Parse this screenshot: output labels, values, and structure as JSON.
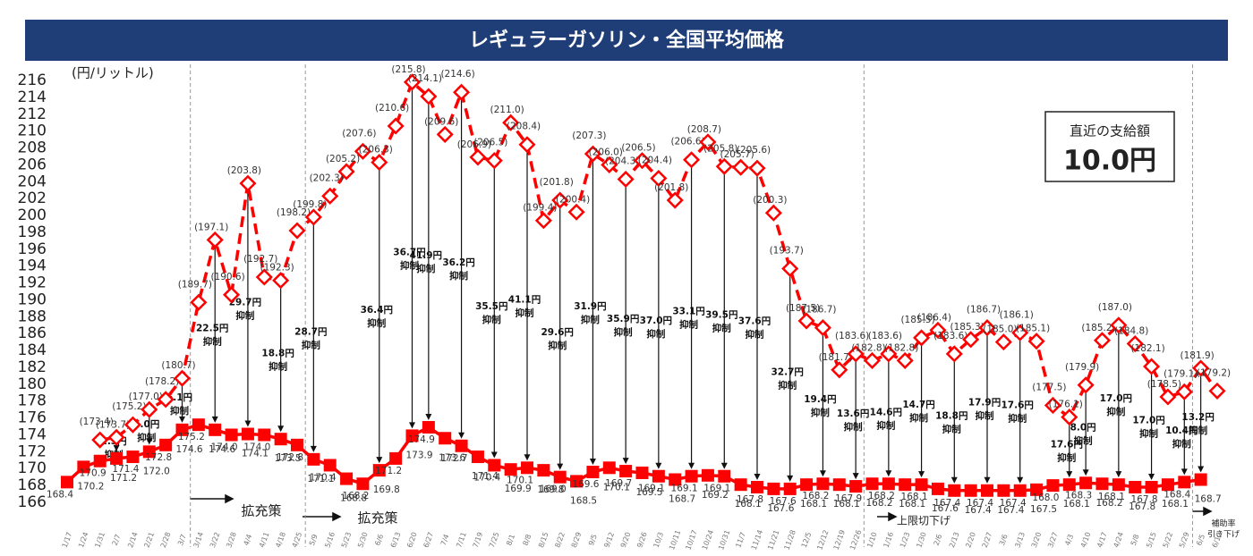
{
  "chart_data": {
    "type": "line",
    "title": "レギュラーガソリン・全国平均価格",
    "y_axis_label": "(円/リットル)",
    "categories": [
      "1/17",
      "1/24",
      "1/31",
      "2/7",
      "2/14",
      "2/21",
      "2/28",
      "3/7",
      "3/14",
      "3/22",
      "3/28",
      "4/4",
      "4/11",
      "4/18",
      "4/25",
      "5/9",
      "5/16",
      "5/23",
      "5/30",
      "6/6",
      "6/13",
      "6/20",
      "6/27",
      "7/4",
      "7/11",
      "7/19",
      "7/25",
      "8/1",
      "8/8",
      "8/15",
      "8/22",
      "8/29",
      "9/5",
      "9/12",
      "9/20",
      "9/26",
      "10/3",
      "10/11",
      "10/17",
      "10/24",
      "10/31",
      "11/7",
      "11/14",
      "11/21",
      "11/28",
      "12/5",
      "12/12",
      "12/19",
      "12/26",
      "1/10",
      "1/16",
      "1/23",
      "1/30",
      "2/6",
      "2/13",
      "2/20",
      "2/27",
      "3/6",
      "3/13",
      "3/20",
      "3/27",
      "4/3",
      "4/10",
      "4/17",
      "4/24",
      "5/8",
      "5/15",
      "5/22",
      "5/29",
      "6/5",
      "6/12"
    ],
    "series": [
      {
        "color": "#ff0000",
        "style": "solid",
        "marker": "square",
        "values": [
          168.4,
          170.2,
          170.9,
          171.2,
          171.4,
          172.0,
          172.8,
          174.6,
          175.2,
          174.6,
          174.0,
          174.1,
          174.0,
          173.5,
          172.8,
          171.1,
          170.4,
          168.8,
          168.2,
          169.8,
          171.2,
          173.9,
          174.9,
          173.6,
          172.7,
          171.4,
          170.4,
          169.9,
          170.1,
          169.8,
          169.0,
          168.5,
          169.6,
          170.1,
          169.7,
          169.5,
          169.1,
          168.7,
          169.1,
          169.2,
          169.1,
          168.1,
          167.8,
          167.6,
          167.6,
          168.1,
          168.2,
          168.1,
          167.9,
          168.2,
          168.2,
          168.1,
          168.1,
          167.6,
          167.4,
          167.4,
          167.4,
          167.4,
          167.4,
          167.5,
          168.0,
          168.1,
          168.3,
          168.2,
          168.1,
          167.8,
          167.8,
          168.1,
          168.4,
          168.7,
          null
        ],
        "value_labels": [
          "168.4",
          "170.2",
          "170.9",
          "171.2",
          "171.4",
          "172.0",
          "172.8",
          "174.6",
          "175.2",
          "174.6",
          "174.0",
          "174.1",
          "174.0",
          "173.5",
          "172.8",
          "171.1",
          "170.4",
          "168.8",
          "168.2",
          "169.8",
          "171.2",
          "173.9",
          "174.9",
          "173.6",
          "172.7",
          "171.4",
          "170.4",
          "169.9",
          "170.1",
          "169.8",
          "169.0",
          "168.5",
          "169.6",
          "170.1",
          "169.7",
          "169.5",
          "169.1",
          "168.7",
          "169.1",
          "169.2",
          "169.1",
          "168.1",
          "167.8",
          "167.6",
          "167.6",
          "168.1",
          "168.2",
          "168.1",
          "167.9",
          "168.2",
          "168.2",
          "168.1",
          "168.1",
          "167.6",
          "167.4",
          "167.4",
          "167.4",
          "167.4",
          "167.4",
          "167.5",
          "168.0",
          "168.1",
          "168.3",
          "168.2",
          "168.1",
          "167.8",
          "167.8",
          "168.1",
          "168.4",
          "168.7",
          null
        ]
      },
      {
        "color": "#ff0000",
        "style": "dashed",
        "marker": "diamond",
        "values": [
          null,
          null,
          173.4,
          173.7,
          175.2,
          177.0,
          178.2,
          180.7,
          189.7,
          197.1,
          190.6,
          203.8,
          192.7,
          192.3,
          198.2,
          199.8,
          202.3,
          205.2,
          207.6,
          206.3,
          210.6,
          215.8,
          214.1,
          209.6,
          214.6,
          206.9,
          206.5,
          211.0,
          208.4,
          199.4,
          201.8,
          200.4,
          207.3,
          206.0,
          204.3,
          206.5,
          204.4,
          201.8,
          206.6,
          208.7,
          205.8,
          205.7,
          205.6,
          200.3,
          193.7,
          187.5,
          186.7,
          181.7,
          183.6,
          182.8,
          183.6,
          182.8,
          185.5,
          186.4,
          183.6,
          185.3,
          186.7,
          185.0,
          186.1,
          185.1,
          177.5,
          176.1,
          179.9,
          185.2,
          187.0,
          184.8,
          182.1,
          178.5,
          179.1,
          181.9,
          179.2
        ],
        "value_labels": [
          null,
          null,
          "(173.4)",
          "(173.7)",
          "(175.2)",
          "(177.0)",
          "(178.2)",
          "(180.7)",
          "(189.7)",
          "(197.1)",
          "(190.6)",
          "(203.8)",
          "(192.7)",
          "(192.3)",
          "(198.2)",
          "(199.8)",
          "(202.3)",
          "(205.2)",
          "(207.6)",
          "(206.3)",
          "(210.6)",
          "(215.8)",
          "(214.1)",
          "(209.6)",
          "(214.6)",
          "(206.9)",
          "(206.5)",
          "(211.0)",
          "(208.4)",
          "(199.4)",
          "(201.8)",
          "(200.4)",
          "(207.3)",
          "(206.0)",
          "(204.3)",
          "(206.5)",
          "(204.4)",
          "(201.8)",
          "(206.6)",
          "(208.7)",
          "(205.8)",
          "(205.7)",
          "(205.6)",
          "(200.3)",
          "(193.7)",
          "(187.5)",
          "(186.7)",
          "(181.7)",
          "(183.6)",
          "(182.8)",
          "(183.6)",
          "(182.8)",
          "(185.5)",
          "(186.4)",
          "(183.6)",
          "(185.3)",
          "(186.7)",
          "(185.0)",
          "(186.1)",
          "(185.1)",
          "(177.5)",
          "(176.1)",
          "(179.9)",
          "(185.2)",
          "(187.0)",
          "(184.8)",
          "(182.1)",
          "(178.5)",
          "(179.1)",
          "(181.9)",
          "(179.2)"
        ]
      }
    ],
    "ylim": [
      166,
      216
    ],
    "yticks": [
      166,
      168,
      170,
      172,
      174,
      176,
      178,
      180,
      182,
      184,
      186,
      188,
      190,
      192,
      194,
      196,
      198,
      200,
      202,
      204,
      206,
      208,
      210,
      212,
      214,
      216
    ],
    "annotations": [
      {
        "x": "2/7",
        "amount": "2.5円",
        "text": "抑制"
      },
      {
        "x": "2/21",
        "amount": "5.0円",
        "text": "抑制"
      },
      {
        "x": "3/7",
        "amount": "6.1円",
        "text": "抑制"
      },
      {
        "x": "3/22",
        "amount": "22.5円",
        "text": "抑制"
      },
      {
        "x": "4/4",
        "amount": "29.7円",
        "text": "抑制"
      },
      {
        "x": "4/18",
        "amount": "18.8円",
        "text": "抑制"
      },
      {
        "x": "5/9",
        "amount": "28.7円",
        "text": "抑制"
      },
      {
        "x": "6/6",
        "amount": "36.4円",
        "text": "抑制"
      },
      {
        "x": "6/20",
        "amount": "36.7円",
        "text": "抑制"
      },
      {
        "x": "6/27",
        "amount": "41.9円",
        "text": "抑制"
      },
      {
        "x": "7/11",
        "amount": "36.2円",
        "text": "抑制"
      },
      {
        "x": "7/25",
        "amount": "35.5円",
        "text": "抑制"
      },
      {
        "x": "8/8",
        "amount": "41.1円",
        "text": "抑制"
      },
      {
        "x": "8/22",
        "amount": "29.6円",
        "text": "抑制"
      },
      {
        "x": "9/5",
        "amount": "31.9円",
        "text": "抑制"
      },
      {
        "x": "9/20",
        "amount": "35.9円",
        "text": "抑制"
      },
      {
        "x": "10/3",
        "amount": "37.0円",
        "text": "抑制"
      },
      {
        "x": "10/17",
        "amount": "33.1円",
        "text": "抑制"
      },
      {
        "x": "10/31",
        "amount": "39.5円",
        "text": "抑制"
      },
      {
        "x": "11/14",
        "amount": "37.6円",
        "text": "抑制"
      },
      {
        "x": "11/28",
        "amount": "32.7円",
        "text": "抑制"
      },
      {
        "x": "12/12",
        "amount": "19.4円",
        "text": "抑制"
      },
      {
        "x": "12/26",
        "amount": "13.6円",
        "text": "抑制"
      },
      {
        "x": "1/16",
        "amount": "14.6円",
        "text": "抑制"
      },
      {
        "x": "1/30",
        "amount": "14.7円",
        "text": "抑制"
      },
      {
        "x": "2/13",
        "amount": "18.8円",
        "text": "抑制"
      },
      {
        "x": "2/27",
        "amount": "17.9円",
        "text": "抑制"
      },
      {
        "x": "3/13",
        "amount": "17.6円",
        "text": "抑制"
      },
      {
        "x": "4/3",
        "amount": "17.6円",
        "text": "抑制"
      },
      {
        "x": "4/10",
        "amount": "8.0円",
        "text": "抑制"
      },
      {
        "x": "4/24",
        "amount": "17.0円",
        "text": "抑制"
      },
      {
        "x": "5/15",
        "amount": "17.0円",
        "text": "抑制"
      },
      {
        "x": "5/29",
        "amount": "10.4円",
        "text": "抑制"
      },
      {
        "x": "6/5",
        "amount": "13.2円",
        "text": "抑制"
      }
    ],
    "notes": [
      "拡充策",
      "拡充策",
      "上限切下げ",
      "補助率",
      "引き下げ"
    ],
    "box": {
      "title": "直近の支給額",
      "value": "10.0円"
    }
  }
}
